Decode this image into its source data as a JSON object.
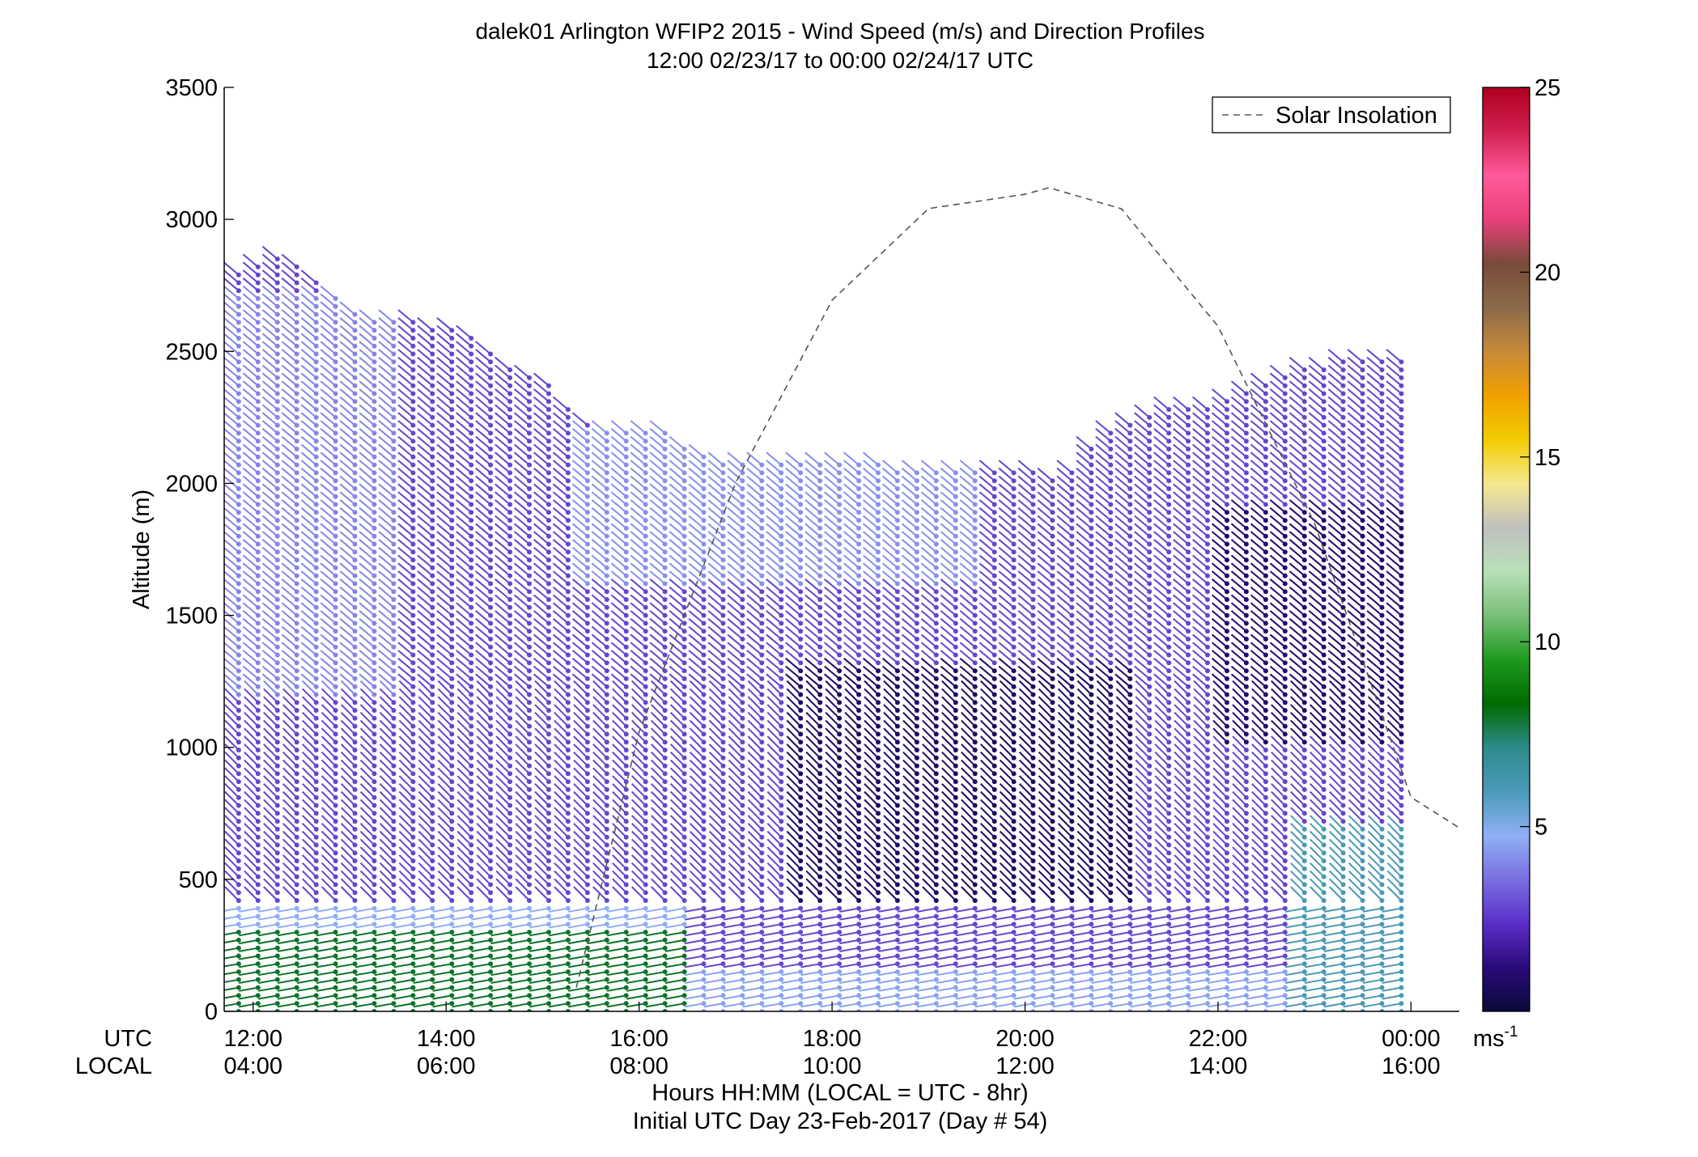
{
  "chart_data": {
    "type": "scatter",
    "title": "dalek01 Arlington WFIP2 2015 - Wind Speed (m/s) and Direction Profiles",
    "subtitle": "12:00 02/23/17 to 00:00 02/24/17  UTC",
    "ylabel": "Altitude (m)",
    "xlabel": "Hours HH:MM  (LOCAL = UTC - 8hr)",
    "xlabel2": "Initial UTC Day 23-Feb-2017 (Day # 54)",
    "utc_row_label": "UTC",
    "local_row_label": "LOCAL",
    "xlim": [
      11.7,
      24.5
    ],
    "ylim": [
      0,
      3500
    ],
    "utc_ticks": [
      "12:00",
      "14:00",
      "16:00",
      "18:00",
      "20:00",
      "22:00",
      "00:00"
    ],
    "local_ticks": [
      "04:00",
      "06:00",
      "08:00",
      "10:00",
      "12:00",
      "14:00",
      "16:00"
    ],
    "y_ticks": [
      "0",
      "500",
      "1000",
      "1500",
      "2000",
      "2500",
      "3000",
      "3500"
    ],
    "legend": {
      "label": "Solar Insolation",
      "position": "top-right"
    },
    "colorbar": {
      "range": [
        0,
        25
      ],
      "ticks": [
        "5",
        "10",
        "15",
        "20",
        "25"
      ],
      "unit": "ms",
      "unit_exponent": "-1",
      "colormap": [
        "#0a0a3a",
        "#2a0a7a",
        "#5a2ec8",
        "#7a6ee0",
        "#8fb0f5",
        "#4a9ab8",
        "#2e8a8a",
        "#006a00",
        "#1f9a1f",
        "#7ac07a",
        "#b8e0b8",
        "#c0c0c0",
        "#f5e890",
        "#f2cc00",
        "#f0a000",
        "#c88a3a",
        "#8a6a4a",
        "#7a4a3a",
        "#e8407a",
        "#ff5a9a",
        "#d02050",
        "#b00020"
      ]
    },
    "solar_insolation_curve": {
      "x": [
        15.35,
        16,
        17,
        18,
        19,
        20,
        20.25,
        21,
        22,
        23,
        24,
        24.5
      ],
      "y": [
        90,
        1058,
        2002,
        2694,
        3041,
        3095,
        3120,
        3040,
        2595,
        1848,
        811,
        695
      ]
    },
    "wind_barb_grid": {
      "x_start": 11.85,
      "x_end": 23.9,
      "columns": 61,
      "y_start": 0,
      "y_step": 30,
      "column_top_altitudes": [
        [
          11.85,
          2800
        ],
        [
          12.2,
          2870
        ],
        [
          12.6,
          2800
        ],
        [
          13,
          2650
        ],
        [
          13.5,
          2620
        ],
        [
          14.1,
          2600
        ],
        [
          14.6,
          2470
        ],
        [
          15,
          2400
        ],
        [
          15.3,
          2280
        ],
        [
          15.6,
          2200
        ],
        [
          16.3,
          2190
        ],
        [
          16.6,
          2130
        ],
        [
          17,
          2080
        ],
        [
          17.5,
          2090
        ],
        [
          18,
          2080
        ],
        [
          18.5,
          2070
        ],
        [
          19,
          2060
        ],
        [
          19.5,
          2070
        ],
        [
          20,
          2050
        ],
        [
          20.4,
          2010
        ],
        [
          20.8,
          2200
        ],
        [
          21.2,
          2240
        ],
        [
          21.6,
          2300
        ],
        [
          22,
          2310
        ],
        [
          22.4,
          2380
        ],
        [
          22.8,
          2430
        ],
        [
          23.2,
          2460
        ],
        [
          23.6,
          2460
        ],
        [
          23.9,
          2470
        ]
      ],
      "speed_regions": [
        {
          "x": [
            11.85,
            16.6
          ],
          "y": [
            0,
            300
          ],
          "speed": 8
        },
        {
          "x": [
            16.6,
            22.8
          ],
          "y": [
            0,
            150
          ],
          "speed": 4.5
        },
        {
          "x": [
            22.8,
            23.9
          ],
          "y": [
            0,
            700
          ],
          "speed": 6
        },
        {
          "x": [
            11.85,
            16.6
          ],
          "y": [
            300,
            400
          ],
          "speed": 4.8
        },
        {
          "x": [
            17.6,
            21.2
          ],
          "y": [
            400,
            1300
          ],
          "speed": 0.8
        },
        {
          "x": [
            22,
            23.9
          ],
          "y": [
            1000,
            1900
          ],
          "speed": 1
        },
        {
          "x": [
            11.85,
            13.5
          ],
          "y": [
            1200,
            2700
          ],
          "speed": 4
        },
        {
          "x": [
            15.3,
            19.5
          ],
          "y": [
            1600,
            2200
          ],
          "speed": 4.2
        }
      ],
      "default_speed": 2.8,
      "direction_regions": [
        {
          "y": [
            0,
            400
          ],
          "toward_deg": 80
        },
        {
          "y": [
            400,
            1200
          ],
          "toward_deg": 135
        },
        {
          "y": [
            1200,
            2900
          ],
          "toward_deg": 130
        }
      ]
    }
  }
}
